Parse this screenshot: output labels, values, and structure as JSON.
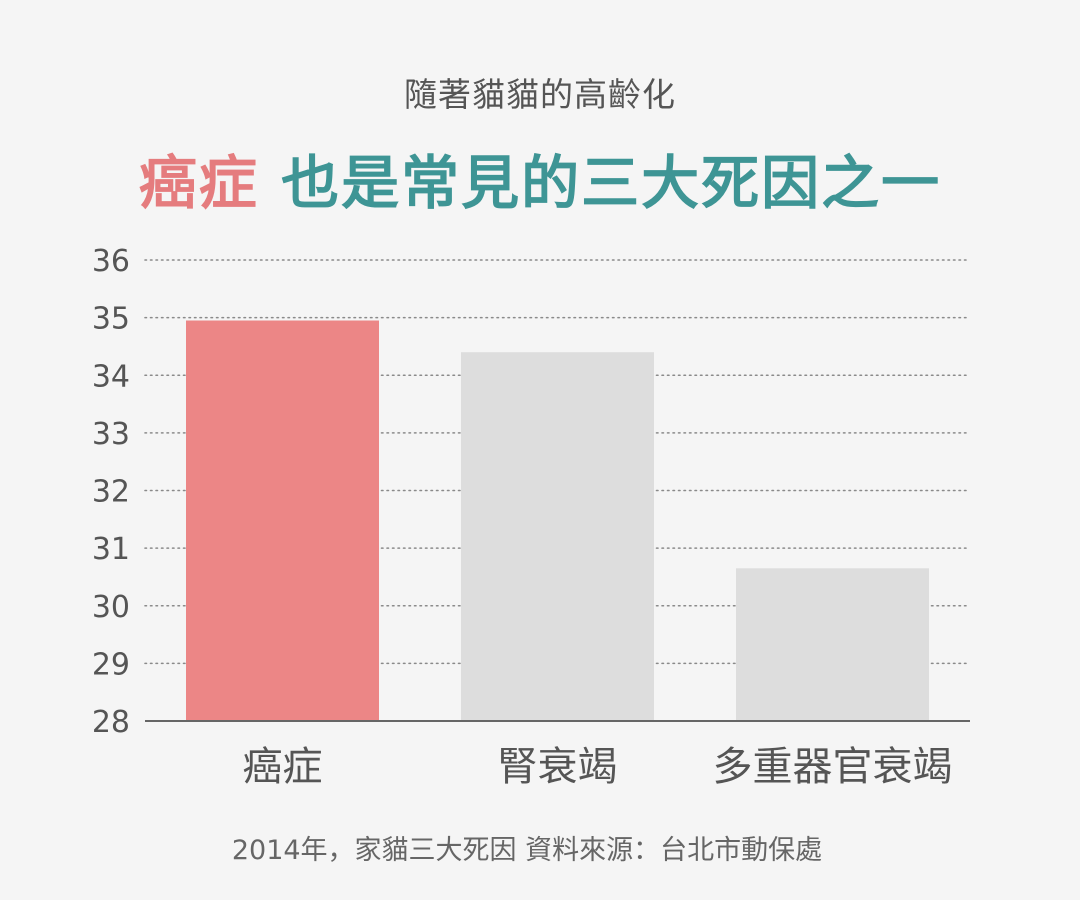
{
  "header": {
    "subtitle": "隨著貓貓的高齡化",
    "title_highlight": "癌症",
    "title_rest": "也是常見的三大死因之一"
  },
  "footnote": "2014年，家貓三大死因 資料來源：台北市動保處",
  "colors": {
    "highlight": "#ec8686",
    "bar_default": "#dddddd",
    "title_accent": "#3e9595",
    "gridline": "#8a8a8a",
    "axis": "#666666",
    "text": "#555555"
  },
  "chart_data": {
    "type": "bar",
    "categories": [
      "癌症",
      "腎衰竭",
      "多重器官衰竭"
    ],
    "values": [
      34.95,
      34.4,
      30.65
    ],
    "highlight_index": 0,
    "ylim": [
      28,
      36
    ],
    "yticks": [
      "28",
      "29",
      "30",
      "31",
      "32",
      "33",
      "34",
      "35",
      "36"
    ],
    "grid": "dotted horizontal",
    "xlabel": "",
    "ylabel": ""
  }
}
